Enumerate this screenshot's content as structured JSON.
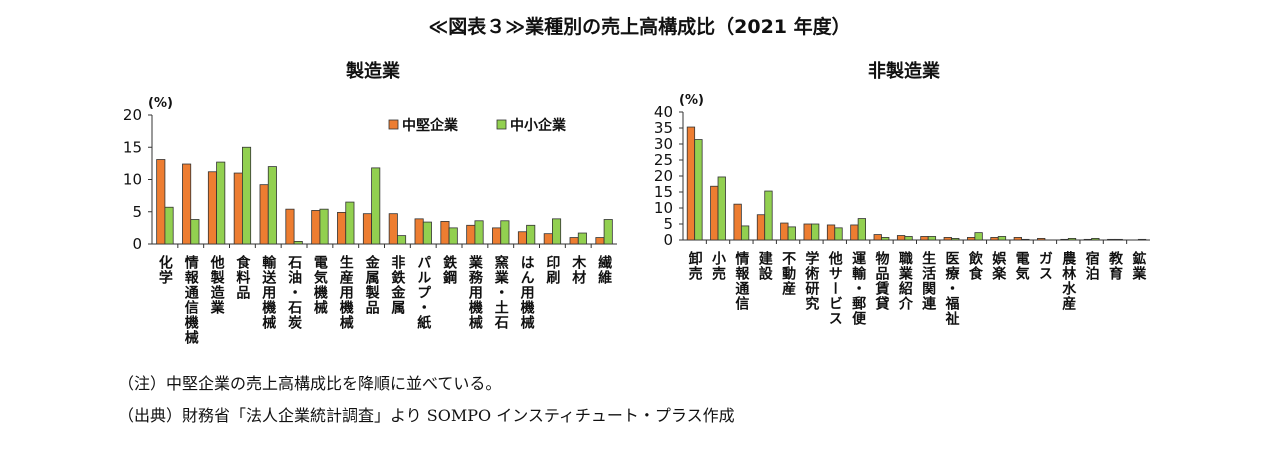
{
  "title": "≪図表３≫業種別の売上高構成比（2021 年度）",
  "notes": [
    "（注）中堅企業の売上高構成比を降順に並べている。",
    "（出典）財務省「法人企業統計調査」より SOMPO インスティチュート・プラス作成"
  ],
  "colors": {
    "mid": "#ED7D31",
    "small": "#92D050"
  },
  "chart_data": [
    {
      "type": "bar",
      "title": "製造業",
      "ylabel": "(%)",
      "ylim": [
        0,
        20
      ],
      "yticks": [
        0,
        5,
        10,
        15,
        20
      ],
      "legend": "top-right",
      "categories": [
        "化学",
        "情報通信機械",
        "他製造業",
        "食料品",
        "輸送用機械",
        "石油・石炭",
        "電気機械",
        "生産用機械",
        "金属製品",
        "非鉄金属",
        "パルプ・紙",
        "鉄鋼",
        "業務用機械",
        "窯業・土石",
        "はん用機械",
        "印刷",
        "木材",
        "繊維"
      ],
      "series": [
        {
          "name": "中堅企業",
          "values": [
            13.1,
            12.4,
            11.2,
            11.0,
            9.2,
            5.4,
            5.2,
            4.9,
            4.7,
            4.7,
            3.9,
            3.5,
            2.9,
            2.5,
            1.9,
            1.6,
            1.0,
            1.0
          ]
        },
        {
          "name": "中小企業",
          "values": [
            5.7,
            3.8,
            12.7,
            15.0,
            12.0,
            0.4,
            5.4,
            6.5,
            11.8,
            1.3,
            3.4,
            2.5,
            3.6,
            3.6,
            2.9,
            3.9,
            1.7,
            3.8
          ]
        }
      ]
    },
    {
      "type": "bar",
      "title": "非製造業",
      "ylabel": "(%)",
      "ylim": [
        0,
        40
      ],
      "yticks": [
        0,
        5,
        10,
        15,
        20,
        25,
        30,
        35,
        40
      ],
      "categories": [
        "卸売",
        "小売",
        "情報通信",
        "建設",
        "不動産",
        "学術研究",
        "他サービス",
        "運輸・郵便",
        "物品賃貸",
        "職業紹介",
        "生活関連",
        "医療・福祉",
        "飲食",
        "娯楽",
        "電気",
        "ガス",
        "農林水産",
        "宿泊",
        "教育",
        "鉱業"
      ],
      "series": [
        {
          "name": "中堅企業",
          "values": [
            35.3,
            16.8,
            11.2,
            7.9,
            5.3,
            5.0,
            4.7,
            4.7,
            1.7,
            1.4,
            1.1,
            0.8,
            0.8,
            0.8,
            0.8,
            0.5,
            0.2,
            0.2,
            0.2,
            0.0
          ]
        },
        {
          "name": "中小企業",
          "values": [
            31.4,
            19.7,
            4.4,
            15.3,
            4.1,
            5.0,
            3.8,
            6.7,
            0.8,
            1.1,
            1.1,
            0.5,
            2.3,
            1.1,
            0.2,
            0.0,
            0.5,
            0.5,
            0.2,
            0.2
          ]
        }
      ]
    }
  ]
}
